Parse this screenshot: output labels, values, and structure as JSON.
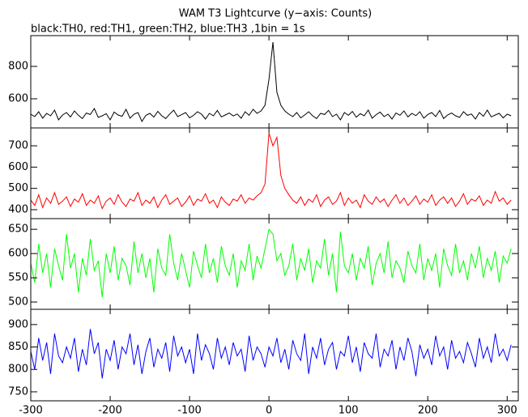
{
  "chart_data": {
    "type": "line",
    "title": "WAM T3 Lightcurve (y−axis: Counts)",
    "subtitle": "black:TH0, red:TH1, green:TH2, blue:TH3 ,1bin = 1s",
    "xlim": [
      -300,
      314
    ],
    "xticks": [
      -300,
      -200,
      -100,
      0,
      100,
      200,
      300
    ],
    "x": [
      -300,
      -295,
      -290,
      -285,
      -280,
      -275,
      -270,
      -265,
      -260,
      -255,
      -250,
      -245,
      -240,
      -235,
      -230,
      -225,
      -220,
      -215,
      -210,
      -205,
      -200,
      -195,
      -190,
      -185,
      -180,
      -175,
      -170,
      -165,
      -160,
      -155,
      -150,
      -145,
      -140,
      -135,
      -130,
      -125,
      -120,
      -115,
      -110,
      -105,
      -100,
      -95,
      -90,
      -85,
      -80,
      -75,
      -70,
      -65,
      -60,
      -55,
      -50,
      -45,
      -40,
      -35,
      -30,
      -25,
      -20,
      -15,
      -10,
      -5,
      0,
      5,
      10,
      15,
      20,
      25,
      30,
      35,
      40,
      45,
      50,
      55,
      60,
      65,
      70,
      75,
      80,
      85,
      90,
      95,
      100,
      105,
      110,
      115,
      120,
      125,
      130,
      135,
      140,
      145,
      150,
      155,
      160,
      165,
      170,
      175,
      180,
      185,
      190,
      195,
      200,
      205,
      210,
      215,
      220,
      225,
      230,
      235,
      240,
      245,
      250,
      255,
      260,
      265,
      270,
      275,
      280,
      285,
      290,
      295,
      300,
      305
    ],
    "panels": [
      {
        "color": "#000000",
        "ylim": [
          420,
          990
        ],
        "yticks": [
          600,
          800
        ],
        "values": [
          505,
          490,
          520,
          480,
          510,
          495,
          530,
          470,
          500,
          515,
          488,
          525,
          498,
          478,
          512,
          503,
          540,
          485,
          495,
          508,
          470,
          518,
          500,
          492,
          535,
          480,
          505,
          515,
          460,
          498,
          510,
          487,
          522,
          495,
          478,
          506,
          530,
          490,
          502,
          515,
          482,
          498,
          520,
          505,
          475,
          510,
          495,
          528,
          488,
          500,
          512,
          494,
          506,
          480,
          520,
          498,
          535,
          510,
          525,
          560,
          720,
          950,
          640,
          560,
          525,
          505,
          490,
          515,
          482,
          500,
          520,
          495,
          478,
          510,
          503,
          528,
          490,
          505,
          470,
          515,
          498,
          522,
          486,
          508,
          495,
          530,
          480,
          502,
          518,
          490,
          505,
          475,
          512,
          498,
          525,
          488,
          510,
          496,
          520,
          480,
          503,
          515,
          490,
          528,
          478,
          500,
          512,
          495,
          485,
          520,
          498,
          506,
          475,
          515,
          492,
          530,
          488,
          500,
          510,
          482,
          505,
          495
        ]
      },
      {
        "color": "#ff0000",
        "ylim": [
          358,
          784
        ],
        "yticks": [
          400,
          500,
          600,
          700
        ],
        "values": [
          445,
          420,
          470,
          410,
          455,
          430,
          480,
          425,
          440,
          460,
          415,
          450,
          435,
          475,
          420,
          445,
          430,
          465,
          405,
          440,
          455,
          425,
          470,
          435,
          415,
          450,
          440,
          480,
          420,
          445,
          430,
          460,
          410,
          445,
          470,
          425,
          440,
          455,
          415,
          435,
          465,
          420,
          450,
          440,
          475,
          430,
          445,
          410,
          460,
          435,
          420,
          450,
          440,
          470,
          430,
          455,
          445,
          465,
          480,
          520,
          760,
          700,
          740,
          560,
          500,
          470,
          445,
          430,
          460,
          420,
          450,
          435,
          470,
          415,
          445,
          460,
          425,
          440,
          480,
          420,
          455,
          430,
          445,
          410,
          470,
          440,
          425,
          460,
          435,
          450,
          415,
          445,
          470,
          430,
          455,
          420,
          440,
          465,
          425,
          450,
          435,
          470,
          420,
          445,
          460,
          430,
          455,
          415,
          440,
          475,
          425,
          450,
          440,
          465,
          420,
          445,
          430,
          485,
          440,
          455,
          425,
          445
        ]
      },
      {
        "color": "#00ff00",
        "ylim": [
          485,
          672
        ],
        "yticks": [
          500,
          550,
          600,
          650
        ],
        "values": [
          580,
          540,
          620,
          560,
          600,
          530,
          610,
          575,
          545,
          640,
          570,
          600,
          520,
          590,
          555,
          630,
          565,
          585,
          510,
          600,
          560,
          615,
          545,
          590,
          575,
          535,
          625,
          560,
          600,
          550,
          590,
          520,
          610,
          570,
          555,
          640,
          580,
          545,
          600,
          565,
          530,
          605,
          575,
          550,
          620,
          560,
          590,
          540,
          615,
          575,
          555,
          600,
          530,
          585,
          565,
          620,
          545,
          595,
          570,
          610,
          650,
          640,
          585,
          600,
          555,
          575,
          620,
          545,
          590,
          565,
          610,
          540,
          585,
          570,
          630,
          555,
          600,
          520,
          645,
          575,
          560,
          600,
          545,
          590,
          570,
          615,
          535,
          580,
          600,
          560,
          625,
          550,
          585,
          570,
          540,
          605,
          575,
          560,
          620,
          545,
          590,
          565,
          600,
          530,
          610,
          575,
          555,
          620,
          560,
          585,
          545,
          600,
          570,
          615,
          550,
          590,
          565,
          605,
          540,
          595,
          580,
          610
        ]
      },
      {
        "color": "#0000ff",
        "ylim": [
          730,
          934
        ],
        "yticks": [
          750,
          800,
          850,
          900
        ],
        "values": [
          840,
          800,
          870,
          820,
          860,
          790,
          880,
          830,
          815,
          850,
          825,
          870,
          795,
          845,
          810,
          890,
          835,
          860,
          780,
          845,
          820,
          865,
          800,
          850,
          835,
          880,
          810,
          855,
          790,
          840,
          870,
          805,
          845,
          825,
          860,
          795,
          875,
          830,
          850,
          815,
          845,
          790,
          880,
          820,
          855,
          835,
          800,
          870,
          825,
          850,
          810,
          860,
          830,
          845,
          795,
          875,
          820,
          850,
          835,
          805,
          850,
          830,
          870,
          815,
          845,
          800,
          865,
          835,
          820,
          880,
          790,
          850,
          825,
          870,
          810,
          845,
          860,
          800,
          840,
          830,
          875,
          815,
          850,
          795,
          860,
          835,
          825,
          880,
          805,
          845,
          830,
          865,
          800,
          850,
          820,
          870,
          840,
          785,
          855,
          825,
          845,
          810,
          875,
          830,
          850,
          800,
          865,
          825,
          840,
          815,
          860,
          835,
          805,
          870,
          825,
          850,
          815,
          880,
          830,
          845,
          820,
          855
        ]
      }
    ]
  }
}
